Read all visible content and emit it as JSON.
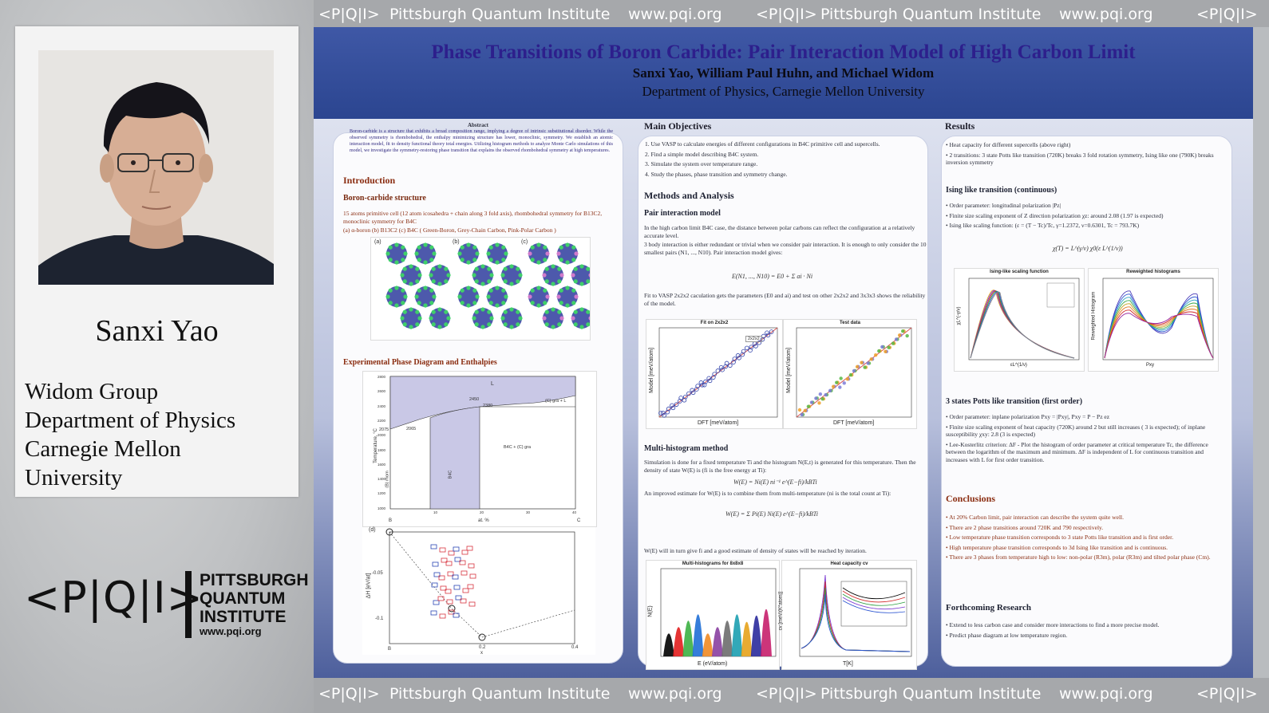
{
  "speaker": {
    "name": "Sanxi Yao",
    "affiliation": [
      "Widom Group",
      "Department of Physics",
      "Carnegie Mellon",
      "University"
    ]
  },
  "logo": {
    "symbol": "<P|Q|I>",
    "lines": [
      "PITTSBURGH",
      "QUANTUM",
      "INSTITUTE"
    ],
    "url": "www.pqi.org"
  },
  "banner": {
    "symbol": "<P|Q|I>",
    "institute": "Pittsburgh Quantum Institute",
    "url": "www.pqi.org"
  },
  "poster": {
    "title": "Phase Transitions of Boron Carbide: Pair Interaction Model of High Carbon Limit",
    "authors": "Sanxi Yao, William Paul Huhn, and Michael Widom",
    "department": "Department of Physics, Carnegie Mellon University",
    "col1": {
      "abstract_title": "Abstract",
      "abstract_text": "Boron-carbide is a structure that exhibits a broad composition range, implying a degree of intrinsic substitutional disorder. While the observed symmetry is rhombohedral, the enthalpy minimizing structure has lower, monoclinic, symmetry. We establish an atomic interaction model, fit to density functional theory total energies. Utilizing histogram methods to analyze Monte Carlo simulations of this model, we investigate the symmetry-restoring phase transition that explains the observed rhombohedral symmetry at high temperatures.",
      "intro_title": "Introduction",
      "structure_title": "Boron-carbide structure",
      "structure_text": "15 atoms primitive cell (12 atom icosahedra + chain along 3 fold axis), rhombohedral symmetry for B13C2, monoclinic symmetry for B4C",
      "structure_caption": "(a) α-boron (b) B13C2 (c) B4C ( Green-Boron, Grey-Chain Carbon, Pink-Polar Carbon )",
      "panel_labels": [
        "(a)",
        "(b)",
        "(c)"
      ],
      "phase_title": "Experimental Phase Diagram and Enthalpies",
      "phase_labels": {
        "L": "L",
        "gra_L": "(C) gra + L",
        "b4c_gra": "B4C + (C) gra",
        "b4c": "B4C",
        "t2450": "2450",
        "t2380": "2380",
        "t2075": "2075",
        "t2065": "2065",
        "ylabel": "Temperature, °C",
        "xlabel": "at. %",
        "xB": "B",
        "xC": "C",
        "side": "(B) rhom"
      },
      "phase_yticks": [
        "2800",
        "2600",
        "2400",
        "2200",
        "2000",
        "1800",
        "1600",
        "1400",
        "1200",
        "1000"
      ],
      "phase_xticks": [
        "10",
        "20",
        "30",
        "40"
      ],
      "enthalpy": {
        "panel": "(d)",
        "ylabel": "ΔH [eV/at]",
        "yticks": [
          "-0.05",
          "-0.1"
        ],
        "xticks": [
          "B",
          "0.2",
          "0.4"
        ],
        "xlabel": "x"
      }
    },
    "col2": {
      "main_title": "Main Objectives",
      "objectives": [
        "1. Use VASP to calculate energies of different configurations in B4C primitive cell and supercells.",
        "2. Find a simple model describing B4C system.",
        "3. Simulate the system over temperature range.",
        "4. Study the phases, phase transition and symmetry change."
      ],
      "methods_title": "Methods and Analysis",
      "pair_title": "Pair interaction model",
      "pair_text1": "In the high carbon limit B4C case, the distance between polar carbons can reflect the configuration at a relatively accurate level.",
      "pair_text2": "3 body interaction is either redundant or trivial when we consider pair interaction. It is enough to only consider the 10 smallest pairs (N1, ..., N10). Pair interaction model gives:",
      "pair_eq": "E(N1, ..., N10) = E0 + Σ ai · Ni",
      "pair_text3": "Fit to VASP 2x2x2 caculation gets the parameters (E0 and ai) and test on other 2x2x2 and 3x3x3 shows the reliability of the model.",
      "fit_fig": {
        "title": "Fit on 2x2x2",
        "xlabel": "DFT [meV/atom]",
        "ylabel": "Model [meV/atom]",
        "legend": "2x2x2"
      },
      "test_fig": {
        "title": "Test data",
        "xlabel": "DFT [meV/atom]",
        "ylabel": "Model [meV/atom]"
      },
      "multi_title": "Multi-histogram method",
      "multi_text1": "Simulation is done for a fixed temperature Ti and the histogram N(E,t) is generated for this temperature. Then the density of state W(E) is (fi is the free energy at Ti):",
      "multi_eq1": "W(E) = Ni(E) ni⁻¹ e^(E−fi)/kBTi",
      "multi_text2": "An improved estimate for W(E) is to combine them from multi-temperature (ni is the total count at Ti):",
      "multi_eq2": "W(E) = Σ Pi(E) Ni(E) e^(E−fi)/kBTi",
      "multi_text3": "W(E) will in turn give fi and a good estimate of density of states will be reached by iteration.",
      "hist_fig": {
        "title": "Multi-histograms for 8x8x8",
        "xlabel": "E (eV/atom)",
        "ylabel": "N(E)"
      },
      "heat_fig": {
        "title": "Heat capacity cv",
        "xlabel": "T[K]",
        "ylabel": "cv [meV/(K*atom)]"
      }
    },
    "col3": {
      "results_title": "Results",
      "results_bullets": [
        "Heat capacity for different supercells (above right)",
        "2 transitions: 3 state Potts like transition (720K) breaks 3 fold rotation symmetry, Ising like one (790K) breaks inversion symmetry"
      ],
      "ising_title": "Ising like transition (continuous)",
      "ising_bullets": [
        "Order parameter: longitudinal polarization |Pz|",
        "Finite size scaling exponent of Z direction polarization χz: around 2.08 (1.97 is expected)",
        "Ising like scaling function: (ε = (T − Tc)/Tc, γ=1.2372, ν=0.6301, Tc = 793.7K)"
      ],
      "ising_eq": "χ(T) = L^(γ/ν) χ0(ε L^(1/ν))",
      "scaling_fig": {
        "title": "Ising-like scaling function",
        "xlabel": "εL^(1/ν)",
        "ylabel": "χL^(-γ/ν)"
      },
      "reweight_fig": {
        "title": "Reweighted histograms",
        "xlabel": "Pxy",
        "ylabel": "Reweighted Histogram"
      },
      "potts_title": "3 states Potts like transition (first order)",
      "potts_bullets": [
        "Order parameter: inplane polarization Pxy = |Pxy|, Pxy = P − Pz ez",
        "Finite size scaling exponent of heat capacity (720K) around 2 but still increases ( 3 is expected); of inplane susceptibility χxy: 2.8 (3 is expected)",
        "Lee-Kosterlitz criterion: ΔF - Plot the histogram of order parameter at critical temperature Tc, the difference between the logarithm of the maximum and minimum. ΔF is independent of L for continuous transition and increases with L for first order transition."
      ],
      "concl_title": "Conclusions",
      "concl_bullets": [
        "At 20% Carbon limit, pair interaction can describe the system quite well.",
        "There are 2 phase transitions around 720K and 790 respectively.",
        "Low temperature phase transition corresponds to 3 state Potts like transition and is first order.",
        "High temperature phase transition corresponds to 3d Ising like transition and is continuous.",
        "There are 3 phases from temperature high to low: non-polar (R3m), polar (R3m) and tilted polar phase (Cm)."
      ],
      "forth_title": "Forthcoming Research",
      "forth_bullets": [
        "Extend to less carbon case and consider more interactions to find a more precise model.",
        "Predict phase diagram at low temperature region."
      ]
    }
  },
  "colors": {
    "header_blue": "#2f4a97",
    "title_purple": "#2d1f8c",
    "section_red": "#8b2e12",
    "banner_gray": "#a6a8ab"
  }
}
